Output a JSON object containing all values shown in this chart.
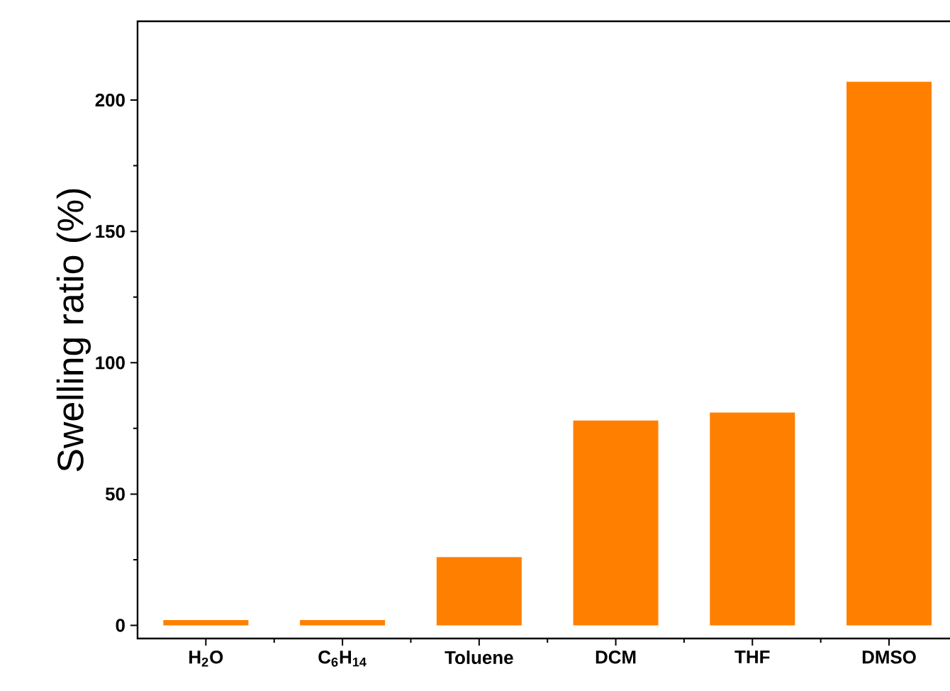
{
  "chart_data": {
    "type": "bar",
    "ylabel": "Swelling ratio (%)",
    "categories": [
      "H$_{2}$O",
      "C$_{6}$H$_{14}$",
      "Toluene",
      "DCM",
      "THF",
      "DMSO"
    ],
    "values": [
      2,
      2,
      26,
      78,
      81,
      207
    ],
    "color": "#ff8000",
    "ylim": [
      -5,
      230
    ],
    "yticks": [
      0,
      50,
      100,
      150,
      200
    ]
  }
}
